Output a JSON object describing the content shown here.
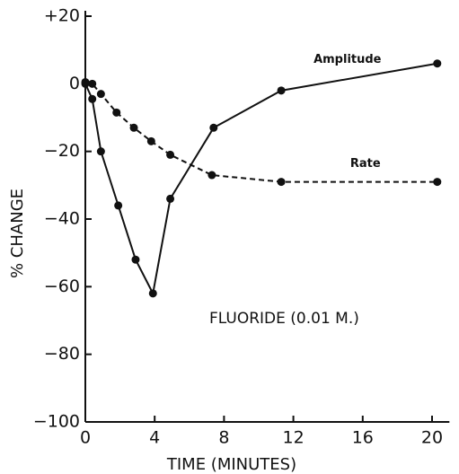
{
  "chart_data": {
    "type": "line",
    "xlabel": "TIME (MINUTES)",
    "ylabel": "% CHANGE",
    "annotation": "FLUORIDE (0.01 M.)",
    "xlim": [
      0,
      21
    ],
    "ylim": [
      -100,
      20
    ],
    "xticks": [
      0,
      4,
      8,
      12,
      16,
      20
    ],
    "yticks": [
      {
        "value": -100,
        "label": "−100"
      },
      {
        "value": -80,
        "label": "−80"
      },
      {
        "value": -60,
        "label": "−60"
      },
      {
        "value": -40,
        "label": "−40"
      },
      {
        "value": -20,
        "label": "−20"
      },
      0,
      {
        "value": 20,
        "label": "+20"
      }
    ],
    "series": [
      {
        "name": "Amplitude",
        "color": "#111111",
        "dashed": false,
        "x": [
          0,
          0.4,
          0.9,
          1.9,
          2.9,
          3.9,
          4.9,
          7.4,
          11.3,
          20.3
        ],
        "values": [
          0,
          -4.5,
          -20,
          -36,
          -52,
          -62,
          -34,
          -13,
          -2,
          6
        ]
      },
      {
        "name": "Rate",
        "color": "#111111",
        "dashed": true,
        "x": [
          0,
          0.4,
          0.9,
          1.8,
          2.8,
          3.8,
          4.9,
          7.3,
          11.3,
          20.3
        ],
        "values": [
          0.5,
          0,
          -3,
          -8.5,
          -13,
          -17,
          -21,
          -27,
          -29,
          -29
        ]
      }
    ]
  }
}
